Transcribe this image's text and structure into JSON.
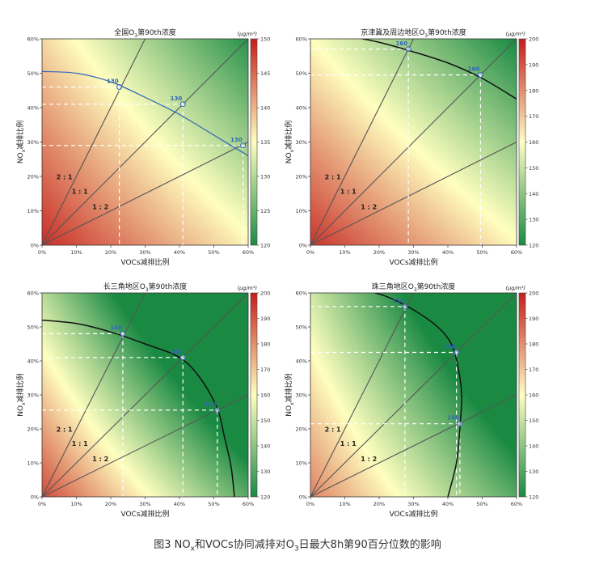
{
  "figure_caption": {
    "prefix": "图3  NO",
    "x_sub": "x",
    "mid": "和VOCs协同减排对O",
    "o3_sub": "3",
    "suffix": "日最大8h第90百分位数的影响"
  },
  "colors": {
    "low": "#1a8a43",
    "mid": "#ffffbf",
    "high": "#c41e1c",
    "guide": "#ffffff",
    "ratio_line": "#555555",
    "marker": "#2f66b8"
  },
  "common": {
    "xlabel": "VOCs减排比例",
    "ylabel_prefix": "NO",
    "ylabel_sub": "x",
    "ylabel_suffix": "减排比例",
    "unit_label": "(μg/m³)",
    "ratio_labels": [
      "2 : 1",
      "1 : 1",
      "1 : 2"
    ],
    "axis_ticks": [
      "0%",
      "10%",
      "20%",
      "30%",
      "40%",
      "50%",
      "60%"
    ]
  },
  "chart_data": [
    {
      "type": "heatmap",
      "id": "national",
      "title_prefix": "全国O",
      "title_sub": "3",
      "title_suffix": "第90th浓度",
      "xlim": [
        0,
        60
      ],
      "ylim": [
        0,
        60
      ],
      "colorbar": {
        "min": 120,
        "max": 150,
        "ticks": [
          "120",
          "125",
          "130",
          "135",
          "140",
          "145",
          "150"
        ]
      },
      "isoline_value": "130",
      "isoline": [
        [
          0,
          50.5
        ],
        [
          10,
          50
        ],
        [
          20,
          47.5
        ],
        [
          30,
          43
        ],
        [
          40,
          38
        ],
        [
          50,
          32
        ],
        [
          60,
          26
        ]
      ],
      "intersections": [
        {
          "x": 22.5,
          "y": 46
        },
        {
          "x": 41,
          "y": 41
        },
        {
          "x": 58.5,
          "y": 29
        }
      ],
      "contour_color": "#2f66b8",
      "isoline_width": 1.2,
      "surface": {
        "base": 149,
        "kx": 0.22,
        "ky": 0.19,
        "kxy": 0.00095
      }
    },
    {
      "type": "heatmap",
      "id": "beijing",
      "title_prefix": "京津冀及周边地区O",
      "title_sub": "3",
      "title_suffix": "第90th浓度",
      "xlim": [
        0,
        60
      ],
      "ylim": [
        0,
        60
      ],
      "colorbar": {
        "min": 120,
        "max": 200,
        "ticks": [
          "120",
          "130",
          "140",
          "150",
          "160",
          "170",
          "180",
          "190",
          "200"
        ]
      },
      "isoline_value": "160",
      "isoline": [
        [
          10,
          61
        ],
        [
          20,
          59
        ],
        [
          29,
          56.5
        ],
        [
          40,
          53
        ],
        [
          50,
          48.5
        ],
        [
          60,
          42.5
        ]
      ],
      "intersections": [
        {
          "x": 28.5,
          "y": 57
        },
        {
          "x": 49.5,
          "y": 49.5
        }
      ],
      "contour_color": "#111111",
      "isoline_width": 1.5,
      "surface": {
        "base": 196,
        "kx": 0.58,
        "ky": 0.6,
        "kxy": 0.0015
      }
    },
    {
      "type": "heatmap",
      "id": "yangtze",
      "title_prefix": "长三角地区O",
      "title_sub": "3",
      "title_suffix": "第90th浓度",
      "xlim": [
        0,
        60
      ],
      "ylim": [
        0,
        60
      ],
      "colorbar": {
        "min": 120,
        "max": 200,
        "ticks": [
          "120",
          "130",
          "140",
          "150",
          "160",
          "170",
          "180",
          "190",
          "200"
        ]
      },
      "isoline_value": "140",
      "isoline": [
        [
          0,
          52
        ],
        [
          10,
          51
        ],
        [
          20,
          48.5
        ],
        [
          30,
          45
        ],
        [
          40,
          41
        ],
        [
          46,
          35
        ],
        [
          51,
          26
        ],
        [
          53,
          18
        ],
        [
          55,
          9
        ],
        [
          56,
          0
        ]
      ],
      "intersections": [
        {
          "x": 23.5,
          "y": 48
        },
        {
          "x": 41,
          "y": 41
        },
        {
          "x": 51,
          "y": 25.5
        }
      ],
      "contour_color": "#111111",
      "isoline_width": 1.5,
      "surface": {
        "base": 192,
        "kx": 1.02,
        "ky": 0.74,
        "kxy": 0.0052
      }
    },
    {
      "type": "heatmap",
      "id": "pearl",
      "title_prefix": "珠三角地区O",
      "title_sub": "3",
      "title_suffix": "第90th浓度",
      "xlim": [
        0,
        60
      ],
      "ylim": [
        0,
        60
      ],
      "colorbar": {
        "min": 120,
        "max": 200,
        "ticks": [
          "120",
          "130",
          "140",
          "150",
          "160",
          "170",
          "180",
          "190",
          "200"
        ]
      },
      "isoline_value": "150",
      "isoline": [
        [
          15,
          61
        ],
        [
          22,
          59
        ],
        [
          30,
          55
        ],
        [
          37,
          50
        ],
        [
          41,
          45
        ],
        [
          43,
          38
        ],
        [
          44,
          30
        ],
        [
          43.5,
          20
        ],
        [
          42.5,
          10
        ],
        [
          40,
          0
        ]
      ],
      "intersections": [
        {
          "x": 27.5,
          "y": 56
        },
        {
          "x": 42.5,
          "y": 42.5
        },
        {
          "x": 43.5,
          "y": 21.5
        }
      ],
      "contour_color": "#111111",
      "isoline_width": 1.5,
      "surface": {
        "base": 182,
        "kx": 0.86,
        "ky": 0.5,
        "kxy": 0.0055
      }
    }
  ]
}
